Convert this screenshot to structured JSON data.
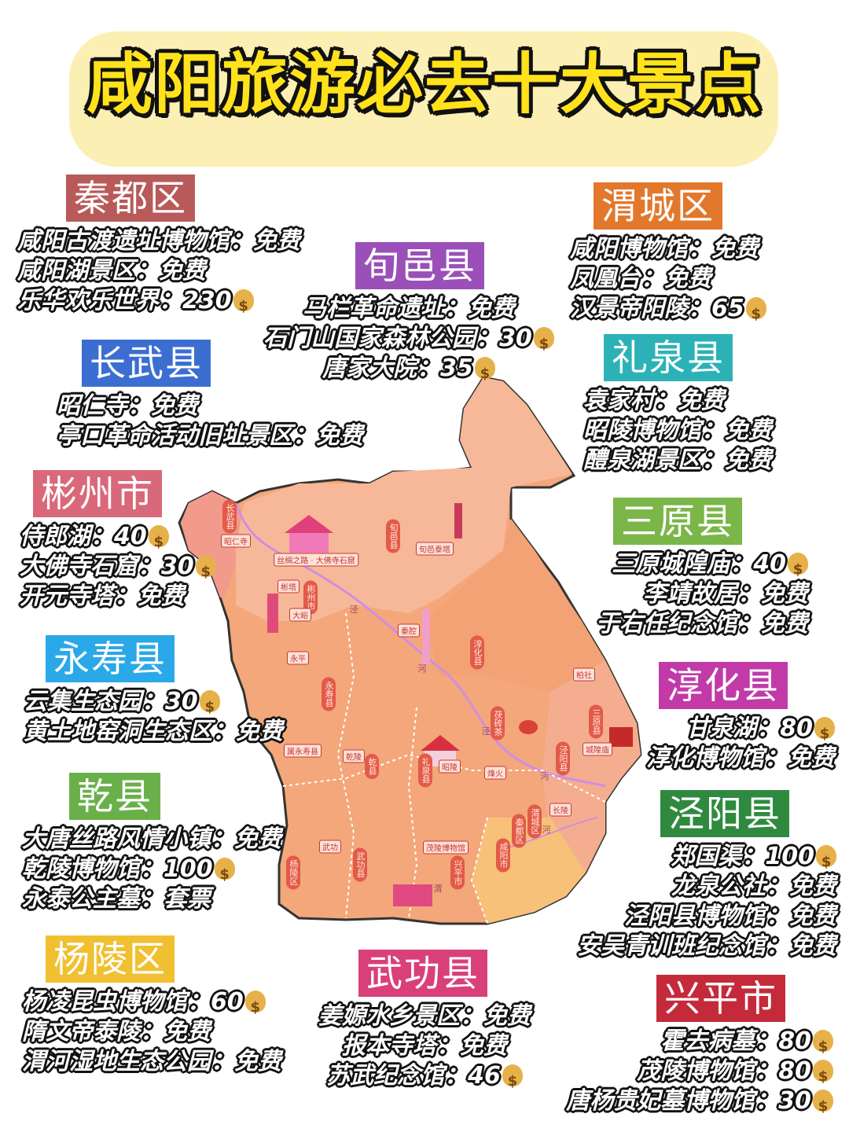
{
  "title": "咸阳旅游必去十大景点",
  "separator": "：",
  "money_icon": "money-bag-icon",
  "districts": [
    {
      "name": "秦都区",
      "color": "#b85a5a",
      "items": [
        {
          "label": "咸阳古渡遗址博物馆",
          "price": "免费",
          "paid": false
        },
        {
          "label": "咸阳湖景区",
          "price": "免费",
          "paid": false
        },
        {
          "label": "乐华欢乐世界",
          "price": "230",
          "paid": true
        }
      ]
    },
    {
      "name": "渭城区",
      "color": "#e2782c",
      "items": [
        {
          "label": "咸阳博物馆",
          "price": "免费",
          "paid": false
        },
        {
          "label": "凤凰台",
          "price": "免费",
          "paid": false
        },
        {
          "label": "汉景帝阳陵",
          "price": "65",
          "paid": true
        }
      ]
    },
    {
      "name": "旬邑县",
      "color": "#9a50b8",
      "items": [
        {
          "label": "马栏革命遗址",
          "price": "免费",
          "paid": false
        },
        {
          "label": "石门山国家森林公园",
          "price": "30",
          "paid": true
        },
        {
          "label": "唐家大院",
          "price": "35",
          "paid": true
        }
      ]
    },
    {
      "name": "长武县",
      "color": "#3c6ed2",
      "items": [
        {
          "label": "昭仁寺",
          "price": "免费",
          "paid": false
        },
        {
          "label": "亭口革命活动旧址景区",
          "price": "免费",
          "paid": false
        }
      ]
    },
    {
      "name": "礼泉县",
      "color": "#2cb2b6",
      "items": [
        {
          "label": "袁家村",
          "price": "免费",
          "paid": false
        },
        {
          "label": "昭陵博物馆",
          "price": "免费",
          "paid": false
        },
        {
          "label": "醴泉湖景区",
          "price": "免费",
          "paid": false
        }
      ]
    },
    {
      "name": "彬州市",
      "color": "#d9687a",
      "items": [
        {
          "label": "侍郎湖",
          "price": "40",
          "paid": true
        },
        {
          "label": "大佛寺石窟",
          "price": "30",
          "paid": true
        },
        {
          "label": "开元寺塔",
          "price": "免费",
          "paid": false
        }
      ]
    },
    {
      "name": "三原县",
      "color": "#7ab648",
      "items": [
        {
          "label": "三原城隍庙",
          "price": "40",
          "paid": true
        },
        {
          "label": "李靖故居",
          "price": "免费",
          "paid": false
        },
        {
          "label": "于右任纪念馆",
          "price": "免费",
          "paid": false
        }
      ]
    },
    {
      "name": "永寿县",
      "color": "#2aa8e8",
      "items": [
        {
          "label": "云集生态园",
          "price": "30",
          "paid": true
        },
        {
          "label": "黄土地窑洞生态区",
          "price": "免费",
          "paid": false
        }
      ]
    },
    {
      "name": "淳化县",
      "color": "#c13aa8",
      "items": [
        {
          "label": "甘泉湖",
          "price": "80",
          "paid": true
        },
        {
          "label": "淳化博物馆",
          "price": "免费",
          "paid": false
        }
      ]
    },
    {
      "name": "乾县",
      "color": "#6ab04a",
      "items": [
        {
          "label": "大唐丝路风情小镇",
          "price": "免费",
          "paid": false
        },
        {
          "label": "乾陵博物馆",
          "price": "100",
          "paid": true
        },
        {
          "label": "永泰公主墓",
          "price": "套票",
          "paid": false
        }
      ]
    },
    {
      "name": "泾阳县",
      "color": "#2f8a3f",
      "items": [
        {
          "label": "郑国渠",
          "price": "100",
          "paid": true
        },
        {
          "label": "龙泉公社",
          "price": "免费",
          "paid": false
        },
        {
          "label": "泾阳县博物馆",
          "price": "免费",
          "paid": false
        },
        {
          "label": "安吴青训班纪念馆",
          "price": "免费",
          "paid": false
        }
      ]
    },
    {
      "name": "杨陵区",
      "color": "#f0c030",
      "items": [
        {
          "label": "杨凌昆虫博物馆",
          "price": "60",
          "paid": true
        },
        {
          "label": "隋文帝泰陵",
          "price": "免费",
          "paid": false
        },
        {
          "label": "渭河湿地生态公园",
          "price": "免费",
          "paid": false
        }
      ]
    },
    {
      "name": "武功县",
      "color": "#d9407a",
      "items": [
        {
          "label": "姜嫄水乡景区",
          "price": "免费",
          "paid": false
        },
        {
          "label": "报本寺塔",
          "price": "免费",
          "paid": false
        },
        {
          "label": "苏武纪念馆",
          "price": "46",
          "paid": true
        }
      ]
    },
    {
      "name": "兴平市",
      "color": "#c42a3a",
      "items": [
        {
          "label": "霍去病墓",
          "price": "80",
          "paid": true
        },
        {
          "label": "茂陵博物馆",
          "price": "80",
          "paid": true
        },
        {
          "label": "唐杨贵妃墓博物馆",
          "price": "30",
          "paid": true
        }
      ]
    }
  ],
  "map": {
    "fill_colors": {
      "base": "#f3a77a",
      "north": "#f6b898",
      "west": "#f29a8c",
      "east": "#f4ad8e",
      "south": "#f7c17a",
      "border": "#333333",
      "river": "#c99ad6"
    },
    "county_labels": [
      "长武县",
      "旬邑县",
      "彬州市",
      "淳化县",
      "永寿县",
      "三原县",
      "乾县",
      "礼泉县",
      "泾阳县",
      "渭城区",
      "秦都区",
      "咸阳市",
      "杨陵区",
      "武功县",
      "兴平市",
      "茯砖茶"
    ],
    "place_labels": [
      "昭仁寺",
      "丝绸之路 · 大佛寺石窟",
      "旬邑泰塔",
      "彬塔",
      "大峪",
      "秦腔",
      "永平",
      "柏社",
      "城隍庙",
      "属永寿县",
      "乾陵",
      "昭陵",
      "烽火",
      "长陵",
      "武功",
      "茂陵博物馆"
    ],
    "river_labels": [
      "泾",
      "河",
      "泾",
      "河",
      "河",
      "渭"
    ]
  }
}
